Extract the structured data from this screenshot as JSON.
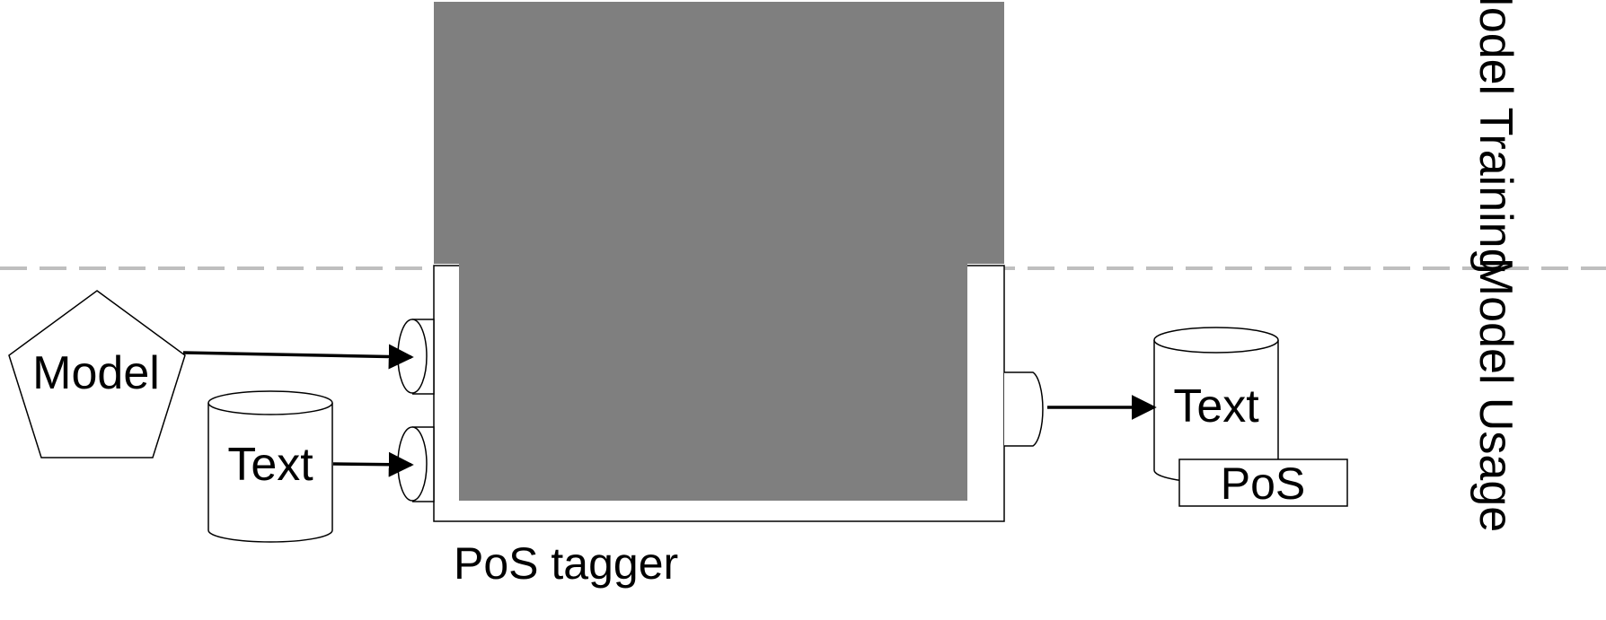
{
  "regions": {
    "training": "Model Training",
    "usage": "Model Usage"
  },
  "tagger": {
    "label": "PoS tagger"
  },
  "inputs": {
    "model": "Model",
    "text": "Text"
  },
  "output": {
    "text": "Text",
    "pos": "PoS"
  },
  "colors": {
    "tagger_fill": "#7f7f7f",
    "divider": "#bfbfbf",
    "stroke": "#000000"
  }
}
